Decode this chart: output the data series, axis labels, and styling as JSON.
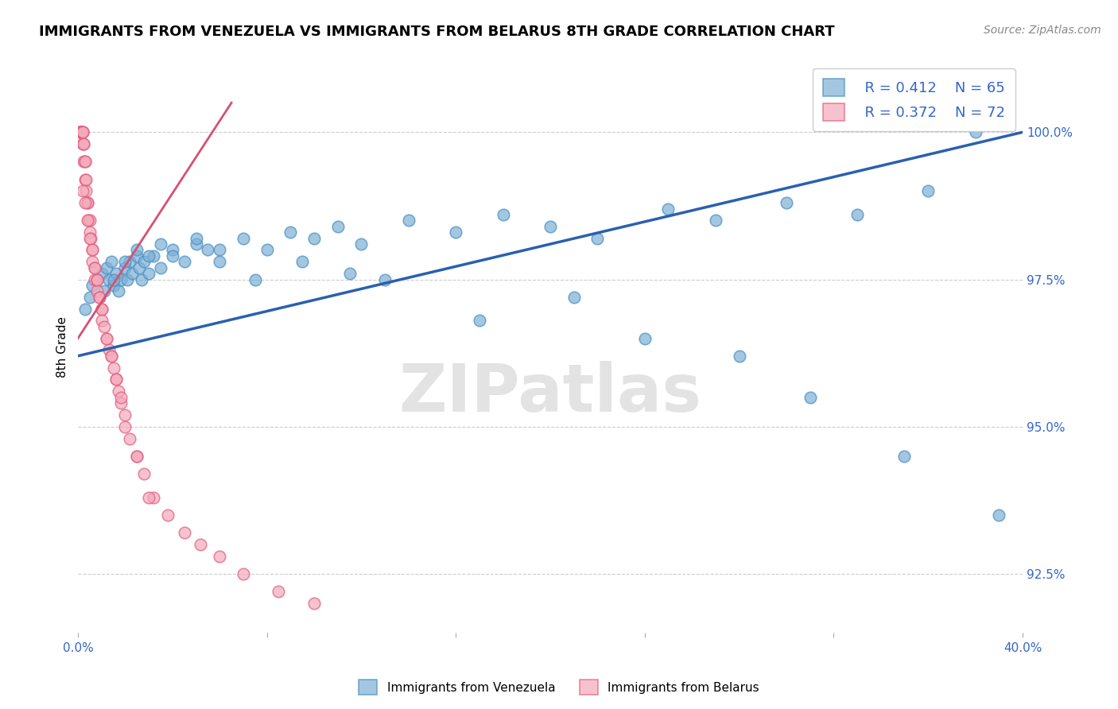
{
  "title": "IMMIGRANTS FROM VENEZUELA VS IMMIGRANTS FROM BELARUS 8TH GRADE CORRELATION CHART",
  "source": "Source: ZipAtlas.com",
  "ylabel": "8th Grade",
  "xlim": [
    0.0,
    40.0
  ],
  "ylim": [
    91.5,
    101.2
  ],
  "yticks": [
    92.5,
    95.0,
    97.5,
    100.0
  ],
  "ytick_labels": [
    "92.5%",
    "95.0%",
    "97.5%",
    "100.0%"
  ],
  "xticks": [
    0,
    8,
    16,
    24,
    32,
    40
  ],
  "xtick_labels": [
    "0.0%",
    "",
    "",
    "",
    "",
    "40.0%"
  ],
  "legend_entries": [
    {
      "r": "R = 0.412",
      "n": "N = 65"
    },
    {
      "r": "R = 0.372",
      "n": "N = 72"
    }
  ],
  "blue_color": "#7EB0D5",
  "blue_edge_color": "#4A90C4",
  "pink_color": "#F4A9BB",
  "pink_edge_color": "#E06080",
  "blue_line_color": "#2A60B0",
  "pink_line_color": "#D95070",
  "text_color": "#3366CC",
  "watermark_color": "#DDDDDD",
  "watermark_text": "ZIPatlas",
  "blue_line_x": [
    0.0,
    40.0
  ],
  "blue_line_y": [
    96.2,
    100.0
  ],
  "pink_line_x": [
    0.0,
    6.5
  ],
  "pink_line_y": [
    96.5,
    100.5
  ],
  "blue_x": [
    0.3,
    0.5,
    0.6,
    0.8,
    1.0,
    1.1,
    1.2,
    1.3,
    1.4,
    1.5,
    1.6,
    1.7,
    1.8,
    2.0,
    2.1,
    2.2,
    2.3,
    2.5,
    2.6,
    2.7,
    2.8,
    3.0,
    3.2,
    3.5,
    4.0,
    4.5,
    5.0,
    5.5,
    6.0,
    7.0,
    8.0,
    9.0,
    10.0,
    11.0,
    12.0,
    14.0,
    16.0,
    18.0,
    20.0,
    22.0,
    25.0,
    27.0,
    30.0,
    33.0,
    36.0,
    38.0,
    1.5,
    2.0,
    2.5,
    3.0,
    3.5,
    4.0,
    5.0,
    6.0,
    7.5,
    9.5,
    11.5,
    13.0,
    17.0,
    21.0,
    24.0,
    28.0,
    31.0,
    35.0,
    39.0
  ],
  "blue_y": [
    97.0,
    97.2,
    97.4,
    97.5,
    97.6,
    97.3,
    97.7,
    97.5,
    97.8,
    97.4,
    97.6,
    97.3,
    97.5,
    97.7,
    97.5,
    97.8,
    97.6,
    97.9,
    97.7,
    97.5,
    97.8,
    97.6,
    97.9,
    97.7,
    98.0,
    97.8,
    98.1,
    98.0,
    97.8,
    98.2,
    98.0,
    98.3,
    98.2,
    98.4,
    98.1,
    98.5,
    98.3,
    98.6,
    98.4,
    98.2,
    98.7,
    98.5,
    98.8,
    98.6,
    99.0,
    100.0,
    97.5,
    97.8,
    98.0,
    97.9,
    98.1,
    97.9,
    98.2,
    98.0,
    97.5,
    97.8,
    97.6,
    97.5,
    96.8,
    97.2,
    96.5,
    96.2,
    95.5,
    94.5,
    93.5
  ],
  "pink_x": [
    0.1,
    0.1,
    0.1,
    0.1,
    0.1,
    0.15,
    0.15,
    0.15,
    0.15,
    0.2,
    0.2,
    0.2,
    0.2,
    0.25,
    0.25,
    0.25,
    0.3,
    0.3,
    0.3,
    0.35,
    0.35,
    0.4,
    0.4,
    0.45,
    0.5,
    0.5,
    0.55,
    0.6,
    0.6,
    0.7,
    0.7,
    0.8,
    0.8,
    0.9,
    1.0,
    1.0,
    1.1,
    1.2,
    1.3,
    1.4,
    1.5,
    1.6,
    1.7,
    1.8,
    2.0,
    2.2,
    2.5,
    2.8,
    3.2,
    3.8,
    4.5,
    5.2,
    6.0,
    7.0,
    8.5,
    10.0,
    0.2,
    0.3,
    0.4,
    0.5,
    0.6,
    0.7,
    0.8,
    0.9,
    1.0,
    1.2,
    1.4,
    1.6,
    1.8,
    2.0,
    2.5,
    3.0
  ],
  "pink_y": [
    100.0,
    100.0,
    100.0,
    100.0,
    100.0,
    100.0,
    100.0,
    100.0,
    100.0,
    100.0,
    100.0,
    100.0,
    99.8,
    99.8,
    99.8,
    99.5,
    99.5,
    99.5,
    99.2,
    99.2,
    99.0,
    98.8,
    98.8,
    98.5,
    98.5,
    98.3,
    98.2,
    98.0,
    97.8,
    97.7,
    97.5,
    97.5,
    97.3,
    97.2,
    97.0,
    96.8,
    96.7,
    96.5,
    96.3,
    96.2,
    96.0,
    95.8,
    95.6,
    95.4,
    95.0,
    94.8,
    94.5,
    94.2,
    93.8,
    93.5,
    93.2,
    93.0,
    92.8,
    92.5,
    92.2,
    92.0,
    99.0,
    98.8,
    98.5,
    98.2,
    98.0,
    97.7,
    97.5,
    97.2,
    97.0,
    96.5,
    96.2,
    95.8,
    95.5,
    95.2,
    94.5,
    93.8
  ]
}
